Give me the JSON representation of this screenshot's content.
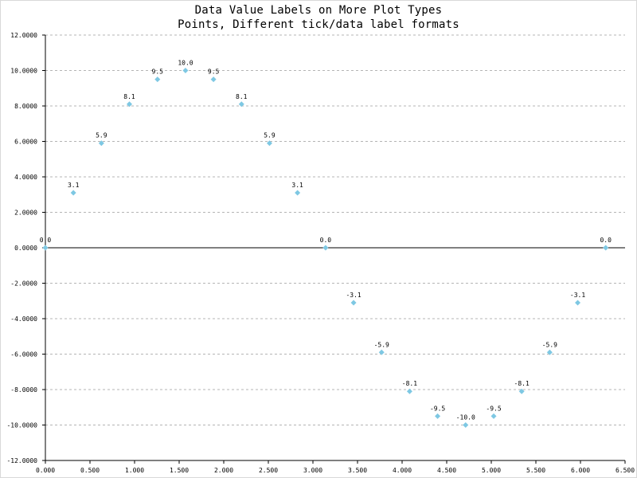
{
  "chart_data": {
    "type": "scatter",
    "title": "Data Value Labels on More Plot Types",
    "subtitle": "Points, Different tick/data label formats",
    "xlabel": "",
    "ylabel": "",
    "xlim": [
      0,
      6.5
    ],
    "ylim": [
      -12,
      12
    ],
    "x_ticks": [
      "0.000",
      "0.500",
      "1.000",
      "1.500",
      "2.000",
      "2.500",
      "3.000",
      "3.500",
      "4.000",
      "4.500",
      "5.000",
      "5.500",
      "6.000",
      "6.500"
    ],
    "y_ticks": [
      "12.0000",
      "10.0000",
      "8.0000",
      "6.0000",
      "4.0000",
      "2.0000",
      "0.0000",
      "-2.0000",
      "-4.0000",
      "-6.0000",
      "-8.0000",
      "-10.0000",
      "-12.0000"
    ],
    "grid": "horizontal-dashed",
    "marker": "diamond",
    "marker_color": "#7ec8e3",
    "zero_line": true,
    "points": [
      {
        "x": 0.0,
        "y": 0.0,
        "label": "0.0"
      },
      {
        "x": 0.314,
        "y": 3.1,
        "label": "3.1"
      },
      {
        "x": 0.628,
        "y": 5.9,
        "label": "5.9"
      },
      {
        "x": 0.942,
        "y": 8.1,
        "label": "8.1"
      },
      {
        "x": 1.257,
        "y": 9.5,
        "label": "9.5"
      },
      {
        "x": 1.571,
        "y": 10.0,
        "label": "10.0"
      },
      {
        "x": 1.885,
        "y": 9.5,
        "label": "9.5"
      },
      {
        "x": 2.199,
        "y": 8.1,
        "label": "8.1"
      },
      {
        "x": 2.513,
        "y": 5.9,
        "label": "5.9"
      },
      {
        "x": 2.827,
        "y": 3.1,
        "label": "3.1"
      },
      {
        "x": 3.142,
        "y": 0.0,
        "label": "0.0"
      },
      {
        "x": 3.456,
        "y": -3.1,
        "label": "-3.1"
      },
      {
        "x": 3.77,
        "y": -5.9,
        "label": "-5.9"
      },
      {
        "x": 4.084,
        "y": -8.1,
        "label": "-8.1"
      },
      {
        "x": 4.398,
        "y": -9.5,
        "label": "-9.5"
      },
      {
        "x": 4.712,
        "y": -10.0,
        "label": "-10.0"
      },
      {
        "x": 5.027,
        "y": -9.5,
        "label": "-9.5"
      },
      {
        "x": 5.341,
        "y": -8.1,
        "label": "-8.1"
      },
      {
        "x": 5.655,
        "y": -5.9,
        "label": "-5.9"
      },
      {
        "x": 5.969,
        "y": -3.1,
        "label": "-3.1"
      },
      {
        "x": 6.283,
        "y": 0.0,
        "label": "0.0"
      }
    ]
  }
}
